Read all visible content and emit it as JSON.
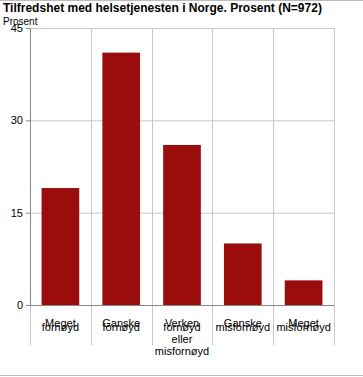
{
  "chart_data": {
    "type": "bar",
    "title": "Tilfredshet med helsetjenesten i Norge. Prosent (N=972)",
    "y_label": "Prosent",
    "categories": [
      "Meget fornøyd",
      "Ganske fornøyd",
      "Verken fornøyd eller misfornøyd",
      "Ganske misfornøyd",
      "Meget misfornøyd"
    ],
    "values": [
      19,
      41,
      26,
      10,
      4
    ],
    "color": "#9b0d0d",
    "ylim": [
      0,
      45
    ],
    "yticks": [
      0,
      15,
      30,
      45
    ],
    "grid": true
  }
}
